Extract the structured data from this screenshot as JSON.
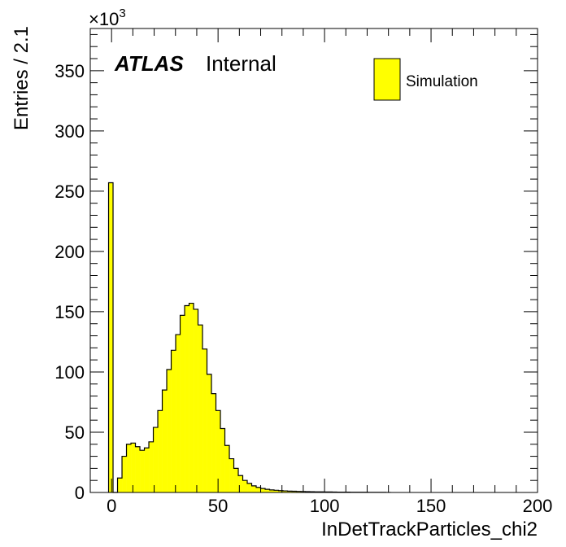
{
  "chart_data": {
    "type": "bar",
    "histogram": true,
    "xlabel": "InDetTrackParticles_chi2",
    "ylabel": "Entries / 2.1",
    "y_multiplier_base": "×10",
    "y_multiplier_exp": "3",
    "xlim": [
      -10,
      200
    ],
    "ylim": [
      0,
      385
    ],
    "x_ticks": [
      0,
      50,
      100,
      150,
      200
    ],
    "y_ticks": [
      0,
      50,
      100,
      150,
      200,
      250,
      300,
      350
    ],
    "bin_width": 2.1,
    "bins_start": -1.4,
    "values": [
      257,
      0,
      12,
      30,
      40,
      41,
      38,
      35,
      37,
      42,
      54,
      68,
      85,
      102,
      118,
      131,
      147,
      155,
      157,
      152,
      139,
      119,
      98,
      82,
      68,
      53,
      39,
      28,
      20,
      14,
      10,
      7.5,
      5.5,
      4.2,
      3.3,
      2.6,
      2.1,
      1.8,
      1.5,
      1.3,
      1.1,
      1.0,
      0.9,
      0.8,
      0.7,
      0.6,
      0.55,
      0.5,
      0.45,
      0.4,
      0.35,
      0.3,
      0.28,
      0.25,
      0.22,
      0.2,
      0.18,
      0.16,
      0.14,
      0.12,
      0.1,
      0.08,
      0.05
    ],
    "series": [
      {
        "name": "Simulation",
        "color": "#ffff00"
      }
    ],
    "legend": "top-right",
    "grid": false
  },
  "annotation": {
    "atlas": "ATLAS",
    "internal": "Internal"
  }
}
